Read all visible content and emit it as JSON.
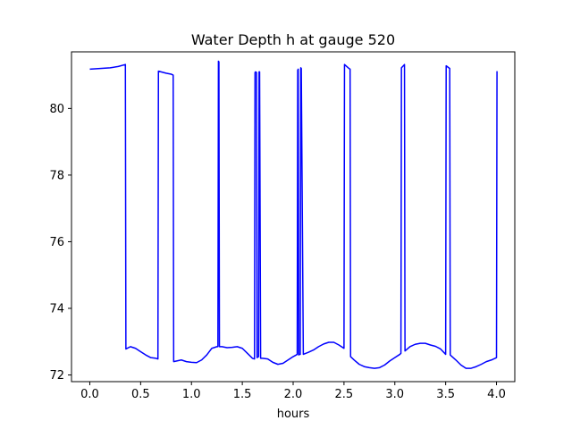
{
  "chart_data": {
    "type": "line",
    "title": "Water Depth h at gauge 520",
    "xlabel": "hours",
    "ylabel": "",
    "xlim": [
      -0.18,
      4.18
    ],
    "ylim": [
      71.8,
      81.7
    ],
    "xticks": [
      "0.0",
      "0.5",
      "1.0",
      "1.5",
      "2.0",
      "2.5",
      "3.0",
      "3.5",
      "4.0"
    ],
    "yticks": [
      "72",
      "74",
      "76",
      "78",
      "80"
    ],
    "grid": false,
    "color": "#0000ff",
    "series": [
      {
        "x": [
          0.0,
          0.1,
          0.2,
          0.28,
          0.35,
          0.355,
          0.4,
          0.45,
          0.5,
          0.55,
          0.6,
          0.65,
          0.67,
          0.675,
          0.7,
          0.75,
          0.8,
          0.82,
          0.825,
          0.9,
          0.95,
          1.0,
          1.05,
          1.1,
          1.15,
          1.2,
          1.25,
          1.26,
          1.265,
          1.27,
          1.275,
          1.3,
          1.35,
          1.4,
          1.45,
          1.5,
          1.55,
          1.6,
          1.62,
          1.625,
          1.63,
          1.64,
          1.645,
          1.66,
          1.665,
          1.67,
          1.68,
          1.685,
          1.7,
          1.75,
          1.8,
          1.85,
          1.9,
          1.95,
          2.0,
          2.03,
          2.04,
          2.045,
          2.05,
          2.055,
          2.06,
          2.07,
          2.075,
          2.08,
          2.1,
          2.15,
          2.2,
          2.25,
          2.3,
          2.35,
          2.4,
          2.45,
          2.5,
          2.505,
          2.55,
          2.56,
          2.565,
          2.6,
          2.65,
          2.7,
          2.75,
          2.8,
          2.85,
          2.9,
          2.95,
          3.0,
          3.05,
          3.06,
          3.065,
          3.09,
          3.095,
          3.1,
          3.15,
          3.2,
          3.25,
          3.3,
          3.35,
          3.4,
          3.45,
          3.5,
          3.505,
          3.54,
          3.545,
          3.6,
          3.65,
          3.7,
          3.75,
          3.8,
          3.85,
          3.9,
          3.95,
          4.0,
          4.005
        ],
        "y": [
          81.18,
          81.2,
          81.22,
          81.26,
          81.32,
          72.78,
          72.85,
          72.8,
          72.7,
          72.6,
          72.52,
          72.5,
          72.48,
          81.12,
          81.1,
          81.06,
          81.03,
          81.0,
          72.4,
          72.45,
          72.4,
          72.38,
          72.37,
          72.45,
          72.6,
          72.8,
          72.85,
          72.85,
          81.42,
          81.4,
          72.85,
          72.85,
          72.82,
          72.83,
          72.85,
          72.8,
          72.65,
          72.5,
          72.48,
          81.08,
          81.1,
          81.08,
          72.52,
          72.55,
          81.1,
          81.1,
          72.5,
          72.5,
          72.5,
          72.48,
          72.38,
          72.32,
          72.35,
          72.45,
          72.55,
          72.6,
          72.62,
          81.15,
          81.18,
          72.6,
          72.62,
          72.62,
          81.22,
          81.2,
          72.62,
          72.68,
          72.75,
          72.85,
          72.93,
          72.98,
          72.98,
          72.9,
          72.8,
          81.32,
          81.2,
          81.18,
          72.55,
          72.45,
          72.32,
          72.25,
          72.22,
          72.2,
          72.22,
          72.3,
          72.42,
          72.52,
          72.62,
          72.65,
          81.22,
          81.3,
          81.32,
          72.72,
          72.85,
          72.92,
          72.95,
          72.95,
          72.9,
          72.86,
          72.78,
          72.62,
          81.28,
          81.2,
          72.6,
          72.45,
          72.3,
          72.2,
          72.2,
          72.25,
          72.32,
          72.4,
          72.45,
          72.52,
          81.12
        ]
      }
    ]
  }
}
